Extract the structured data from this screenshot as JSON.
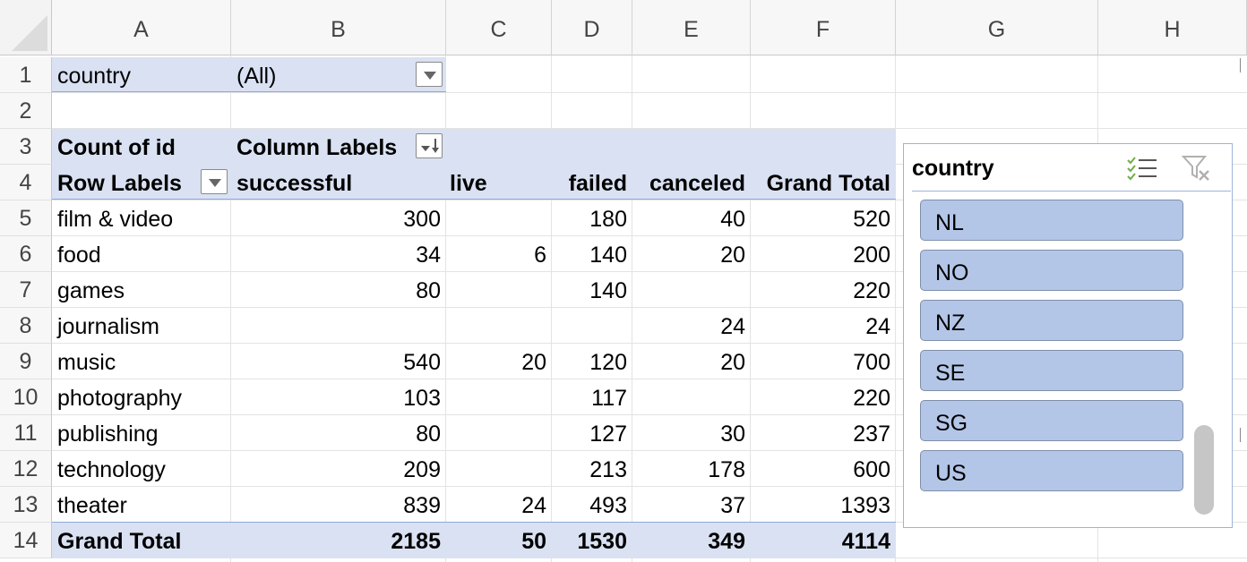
{
  "columns": [
    "A",
    "B",
    "C",
    "D",
    "E",
    "F",
    "G",
    "H"
  ],
  "rows": [
    "1",
    "2",
    "3",
    "4",
    "5",
    "6",
    "7",
    "8",
    "9",
    "10",
    "11",
    "12",
    "13",
    "14"
  ],
  "filter": {
    "label": "country",
    "value": "(All)"
  },
  "pivot": {
    "count_label": "Count of id",
    "column_labels": "Column Labels",
    "row_labels": "Row Labels",
    "headers": [
      "successful",
      "live",
      "failed",
      "canceled",
      "Grand Total"
    ],
    "rows": [
      {
        "label": "film & video",
        "successful": "300",
        "live": "",
        "failed": "180",
        "canceled": "40",
        "total": "520"
      },
      {
        "label": "food",
        "successful": "34",
        "live": "6",
        "failed": "140",
        "canceled": "20",
        "total": "200"
      },
      {
        "label": "games",
        "successful": "80",
        "live": "",
        "failed": "140",
        "canceled": "",
        "total": "220"
      },
      {
        "label": "journalism",
        "successful": "",
        "live": "",
        "failed": "",
        "canceled": "24",
        "total": "24"
      },
      {
        "label": "music",
        "successful": "540",
        "live": "20",
        "failed": "120",
        "canceled": "20",
        "total": "700"
      },
      {
        "label": "photography",
        "successful": "103",
        "live": "",
        "failed": "117",
        "canceled": "",
        "total": "220"
      },
      {
        "label": "publishing",
        "successful": "80",
        "live": "",
        "failed": "127",
        "canceled": "30",
        "total": "237"
      },
      {
        "label": "technology",
        "successful": "209",
        "live": "",
        "failed": "213",
        "canceled": "178",
        "total": "600"
      },
      {
        "label": "theater",
        "successful": "839",
        "live": "24",
        "failed": "493",
        "canceled": "37",
        "total": "1393"
      }
    ],
    "grand_total": {
      "label": "Grand Total",
      "successful": "2185",
      "live": "50",
      "failed": "1530",
      "canceled": "349",
      "total": "4114"
    }
  },
  "slicer": {
    "title": "country",
    "items": [
      "NL",
      "NO",
      "NZ",
      "SE",
      "SG",
      "US"
    ],
    "accent_color": "#b4c6e7"
  },
  "colors": {
    "pivot_band": "#d9e1f2",
    "pivot_line": "#8ea9db"
  }
}
